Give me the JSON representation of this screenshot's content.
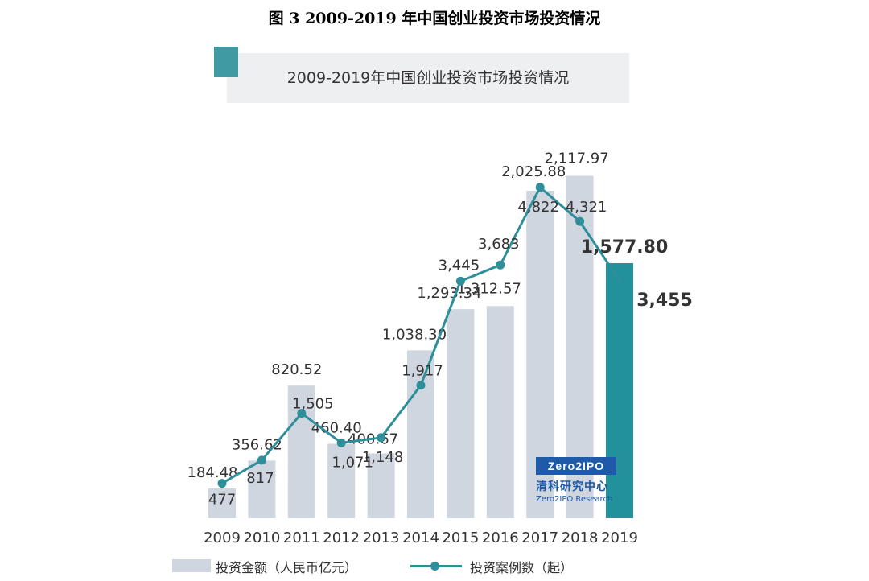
{
  "figure_caption": "图 3 2009-2019 年中国创业投资市场投资情况",
  "chart_title": "2009-2019年中国创业投资市场投资情况",
  "watermark": {
    "logo_text": "Zero2IPO",
    "chinese_name": "清科研究中心",
    "english_name": "Zero2IPO Research"
  },
  "colors": {
    "bar": "#cfd6df",
    "bar_highlight": "#23919b",
    "line": "#2e8f9a",
    "title_accent": "#3f9aa2"
  },
  "chart_data": {
    "type": "bar",
    "title": "2009-2019年中国创业投资市场投资情况",
    "categories": [
      "2009",
      "2010",
      "2011",
      "2012",
      "2013",
      "2014",
      "2015",
      "2016",
      "2017",
      "2018",
      "2019"
    ],
    "series": [
      {
        "name": "投资金额（人民币亿元）",
        "kind": "bar",
        "values": [
          184.48,
          356.62,
          820.52,
          460.4,
          400.67,
          1038.3,
          1293.34,
          1312.57,
          2025.88,
          2117.97,
          1577.8
        ],
        "labels": [
          "184.48",
          "356.62",
          "820.52",
          "460.40",
          "400.67",
          "1,038.30",
          "1,293.34",
          "1,312.57",
          "2,025.88",
          "2,117.97",
          "1,577.80"
        ],
        "highlight_last": true
      },
      {
        "name": "投资案例数（起）",
        "kind": "line",
        "values": [
          477,
          817,
          1505,
          1071,
          1148,
          1917,
          3445,
          3683,
          4822,
          4321,
          3455
        ],
        "labels": [
          "477",
          "817",
          "1,505",
          "1,071",
          "1,148",
          "1,917",
          "3,445",
          "3,683",
          "4,822",
          "4,321",
          "3,455"
        ],
        "highlight_last": true
      }
    ],
    "ylim_bar": [
      0,
      2500
    ],
    "ylim_line": [
      0,
      6000
    ],
    "xlabel": "",
    "ylabel": "",
    "grid": false,
    "legend_position": "bottom"
  }
}
